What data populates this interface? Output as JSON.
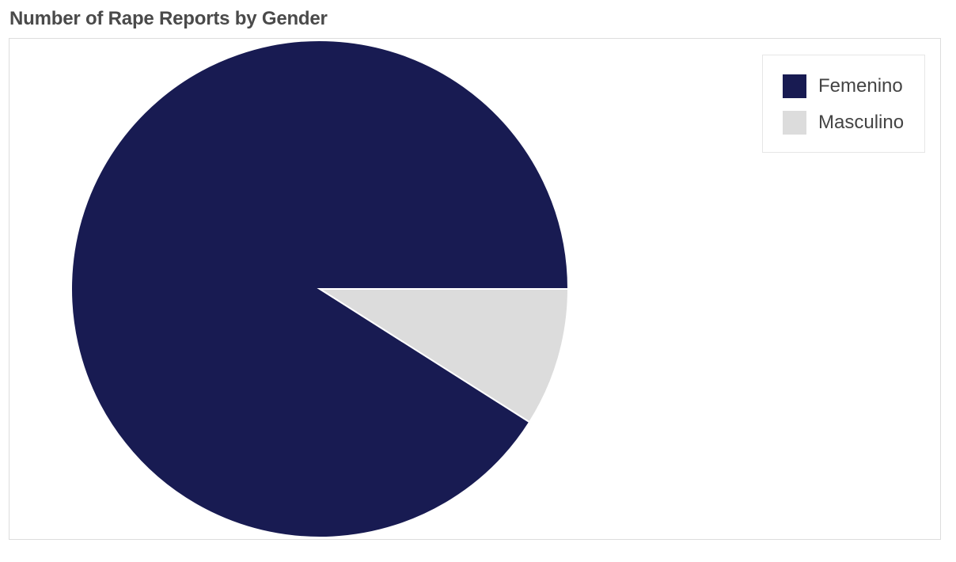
{
  "chart_data": {
    "type": "pie",
    "title": "Number of Rape Reports by Gender",
    "legend_position": "top-right",
    "slices": [
      {
        "label": "Femenino",
        "value": 91,
        "color": "#181b52"
      },
      {
        "label": "Masculino",
        "value": 9,
        "color": "#dcdcdc"
      }
    ]
  }
}
